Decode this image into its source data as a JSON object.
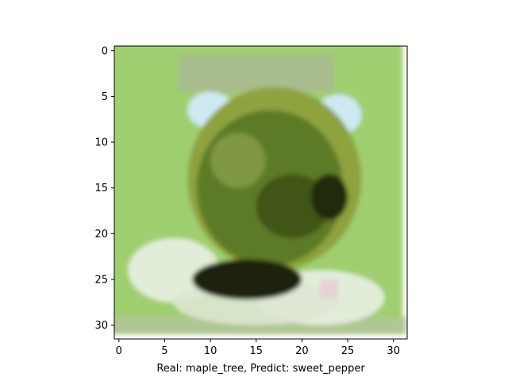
{
  "chart_data": {
    "type": "heatmap",
    "title": "",
    "xlabel": "Real: maple_tree, Predict: sweet_pepper",
    "ylabel": "",
    "xlim": [
      -0.5,
      31.5
    ],
    "ylim": [
      31.5,
      -0.5
    ],
    "x_ticks": [
      0,
      5,
      10,
      15,
      20,
      25,
      30
    ],
    "y_ticks": [
      0,
      5,
      10,
      15,
      20,
      25,
      30
    ],
    "x_tick_labels": [
      "0",
      "5",
      "10",
      "15",
      "20",
      "25",
      "30"
    ],
    "y_tick_labels": [
      "0",
      "5",
      "10",
      "15",
      "20",
      "25",
      "30"
    ],
    "grid": false,
    "image_size": [
      32,
      32
    ],
    "palette": {
      "background": "#9fcf6e",
      "dark_foliage": "#1a2410",
      "mid_foliage": "#5d7a25",
      "light_foliage": "#8ea23c",
      "sky_blue": "#cfe9f3",
      "pale": "#e6eede"
    }
  }
}
